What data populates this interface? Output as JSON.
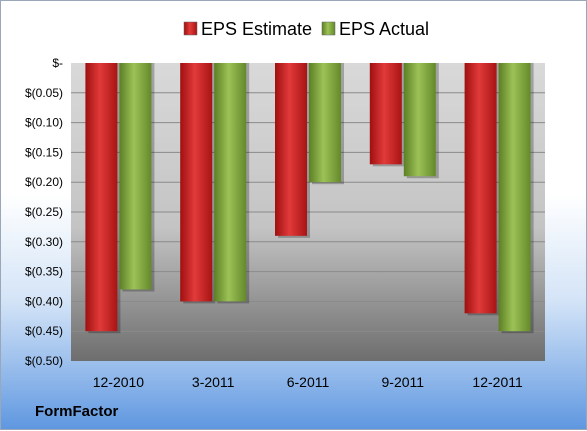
{
  "chart_data": {
    "type": "bar",
    "categories": [
      "12-2010",
      "3-2011",
      "6-2011",
      "9-2011",
      "12-2011"
    ],
    "series": [
      {
        "name": "EPS Estimate",
        "values": [
          -0.45,
          -0.4,
          -0.29,
          -0.17,
          -0.42
        ],
        "color": "#cc1f1f"
      },
      {
        "name": "EPS Actual",
        "values": [
          -0.38,
          -0.4,
          -0.2,
          -0.19,
          -0.45
        ],
        "color": "#7ea63a"
      }
    ],
    "yticks": [
      {
        "value": 0,
        "label": "$-"
      },
      {
        "value": -0.05,
        "label": "$(0.05)"
      },
      {
        "value": -0.1,
        "label": "$(0.10)"
      },
      {
        "value": -0.15,
        "label": "$(0.15)"
      },
      {
        "value": -0.2,
        "label": "$(0.20)"
      },
      {
        "value": -0.25,
        "label": "$(0.25)"
      },
      {
        "value": -0.3,
        "label": "$(0.30)"
      },
      {
        "value": -0.35,
        "label": "$(0.35)"
      },
      {
        "value": -0.4,
        "label": "$(0.40)"
      },
      {
        "value": -0.45,
        "label": "$(0.45)"
      },
      {
        "value": -0.5,
        "label": "$(0.50)"
      }
    ],
    "ylim": [
      -0.5,
      0
    ],
    "grid": true,
    "legend_position": "top-center"
  },
  "brand": "FormFactor"
}
